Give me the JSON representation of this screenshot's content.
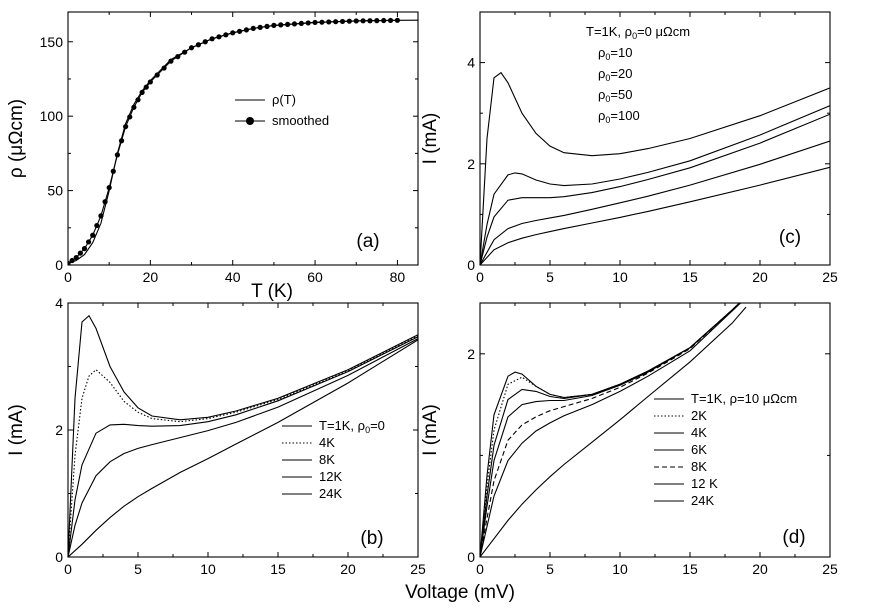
{
  "chart_data": [
    {
      "panel": "a",
      "type": "line",
      "panel_label": "(a)",
      "xlabel": "T (K)",
      "ylabel": "ρ (μΩcm)",
      "xlim": [
        0,
        85
      ],
      "ylim": [
        0,
        170
      ],
      "xticks": [
        0,
        20,
        40,
        60,
        80
      ],
      "yticks": [
        0,
        50,
        100,
        150
      ],
      "legend_position": "center-right",
      "series": [
        {
          "name": "ρ(T)",
          "style": "solid",
          "x": [
            0,
            2,
            4,
            6,
            8,
            10,
            12,
            14,
            16,
            18,
            20,
            25,
            30,
            35,
            40,
            45,
            50,
            55,
            60,
            65,
            70,
            75,
            80,
            85
          ],
          "y": [
            1,
            3,
            7,
            15,
            28,
            50,
            75,
            95,
            108,
            117,
            124,
            138,
            146,
            152,
            156,
            159,
            161,
            162,
            163,
            163.5,
            164,
            164.2,
            164.4,
            164.5
          ]
        },
        {
          "name": "smoothed",
          "style": "line-with-dots",
          "x": [
            0,
            2,
            4,
            6,
            8,
            10,
            12,
            14,
            16,
            18,
            20,
            25,
            30,
            35,
            40,
            45,
            50,
            55,
            60,
            65,
            70,
            75,
            80
          ],
          "y": [
            1,
            5,
            11,
            20,
            33,
            52,
            74,
            93,
            106,
            116,
            123,
            137,
            146,
            152,
            156,
            159,
            161,
            162,
            163,
            163.5,
            164,
            164.2,
            164.4
          ]
        }
      ]
    },
    {
      "panel": "b",
      "type": "line",
      "panel_label": "(b)",
      "xlabel": "Voltage (mV)",
      "ylabel": "I (mA)",
      "xlim": [
        0,
        25
      ],
      "ylim": [
        0,
        4
      ],
      "xticks": [
        0,
        5,
        10,
        15,
        20,
        25
      ],
      "yticks": [
        0,
        2,
        4
      ],
      "legend_position": "center-right",
      "series": [
        {
          "name": "T=1K, ρ0=0",
          "style": "solid",
          "x": [
            0,
            0.5,
            1,
            1.5,
            2,
            3,
            4,
            5,
            6,
            8,
            10,
            12,
            15,
            20,
            25
          ],
          "y": [
            0,
            2.5,
            3.7,
            3.8,
            3.6,
            3.0,
            2.6,
            2.35,
            2.22,
            2.16,
            2.2,
            2.3,
            2.5,
            2.95,
            3.5
          ]
        },
        {
          "name": "4K",
          "style": "dotted",
          "x": [
            0,
            0.5,
            1,
            1.5,
            2,
            3,
            4,
            5,
            6,
            8,
            10,
            12,
            15,
            20,
            25
          ],
          "y": [
            0,
            1.6,
            2.5,
            2.85,
            2.95,
            2.75,
            2.45,
            2.28,
            2.18,
            2.13,
            2.18,
            2.28,
            2.48,
            2.93,
            3.48
          ]
        },
        {
          "name": "8K",
          "style": "solid",
          "x": [
            0,
            0.5,
            1,
            2,
            3,
            4,
            5,
            6,
            8,
            10,
            12,
            15,
            20,
            25
          ],
          "y": [
            0,
            0.9,
            1.45,
            1.95,
            2.08,
            2.09,
            2.07,
            2.06,
            2.07,
            2.13,
            2.24,
            2.46,
            2.92,
            3.47
          ]
        },
        {
          "name": "12K",
          "style": "solid",
          "x": [
            0,
            0.5,
            1,
            2,
            3,
            4,
            5,
            6,
            8,
            10,
            12,
            15,
            20,
            25
          ],
          "y": [
            0,
            0.5,
            0.85,
            1.28,
            1.5,
            1.63,
            1.71,
            1.77,
            1.88,
            1.99,
            2.12,
            2.36,
            2.86,
            3.44
          ]
        },
        {
          "name": "24K",
          "style": "solid",
          "x": [
            0,
            1,
            2,
            3,
            4,
            5,
            6,
            8,
            10,
            12,
            15,
            20,
            25
          ],
          "y": [
            0,
            0.2,
            0.42,
            0.62,
            0.8,
            0.95,
            1.08,
            1.33,
            1.55,
            1.78,
            2.12,
            2.74,
            3.42
          ]
        }
      ]
    },
    {
      "panel": "c",
      "type": "line",
      "panel_label": "(c)",
      "xlabel": "",
      "ylabel": "I (mA)",
      "xlim": [
        0,
        25
      ],
      "ylim": [
        0,
        5
      ],
      "xticks": [
        0,
        5,
        10,
        15,
        20,
        25
      ],
      "yticks": [
        0,
        2,
        4
      ],
      "legend_position": "top-center",
      "series": [
        {
          "name": "T=1K, ρ0=0 μΩcm",
          "style": "solid",
          "x": [
            0,
            0.5,
            1,
            1.5,
            2,
            3,
            4,
            5,
            6,
            8,
            10,
            12,
            15,
            20,
            25
          ],
          "y": [
            0,
            2.5,
            3.7,
            3.8,
            3.6,
            3.0,
            2.6,
            2.35,
            2.22,
            2.16,
            2.2,
            2.3,
            2.5,
            2.95,
            3.5
          ]
        },
        {
          "name": "ρ0=10",
          "style": "solid",
          "x": [
            0,
            0.5,
            1,
            2,
            2.5,
            3,
            4,
            5,
            6,
            8,
            10,
            12,
            15,
            20,
            25
          ],
          "y": [
            0,
            0.8,
            1.4,
            1.78,
            1.82,
            1.8,
            1.68,
            1.6,
            1.57,
            1.6,
            1.7,
            1.83,
            2.06,
            2.57,
            3.15
          ]
        },
        {
          "name": "ρ0=20",
          "style": "solid",
          "x": [
            0,
            0.5,
            1,
            2,
            3,
            4,
            5,
            6,
            8,
            10,
            12,
            15,
            20,
            25
          ],
          "y": [
            0,
            0.55,
            0.95,
            1.28,
            1.33,
            1.33,
            1.33,
            1.35,
            1.43,
            1.55,
            1.69,
            1.92,
            2.41,
            2.98
          ]
        },
        {
          "name": "ρ0=50",
          "style": "solid",
          "x": [
            0,
            1,
            2,
            3,
            4,
            5,
            6,
            8,
            10,
            12,
            15,
            20,
            25
          ],
          "y": [
            0,
            0.5,
            0.72,
            0.82,
            0.88,
            0.93,
            0.98,
            1.1,
            1.23,
            1.36,
            1.58,
            1.99,
            2.45
          ]
        },
        {
          "name": "ρ0=100",
          "style": "solid",
          "x": [
            0,
            1,
            2,
            3,
            4,
            5,
            6,
            8,
            10,
            12,
            15,
            20,
            25
          ],
          "y": [
            0,
            0.3,
            0.44,
            0.53,
            0.6,
            0.66,
            0.72,
            0.83,
            0.94,
            1.06,
            1.25,
            1.58,
            1.93
          ]
        }
      ]
    },
    {
      "panel": "d",
      "type": "line",
      "panel_label": "(d)",
      "xlabel": "Voltage (mV)",
      "ylabel": "I (mA)",
      "xlim": [
        0,
        25
      ],
      "ylim": [
        0,
        2.5
      ],
      "xticks": [
        0,
        5,
        10,
        15,
        20,
        25
      ],
      "yticks": [
        0,
        2
      ],
      "legend_position": "center-right",
      "series": [
        {
          "name": "T=1K, ρ=10 μΩcm",
          "style": "solid",
          "x": [
            0,
            0.5,
            1,
            2,
            2.5,
            3,
            4,
            5,
            6,
            8,
            10,
            12,
            15,
            18,
            19
          ],
          "y": [
            0,
            0.8,
            1.4,
            1.78,
            1.82,
            1.8,
            1.68,
            1.6,
            1.57,
            1.6,
            1.7,
            1.83,
            2.06,
            2.43,
            2.56
          ]
        },
        {
          "name": "2K",
          "style": "dotted",
          "x": [
            0,
            0.5,
            1,
            2,
            3,
            4,
            5,
            6,
            8,
            10,
            12,
            15,
            18,
            19
          ],
          "y": [
            0,
            0.7,
            1.25,
            1.7,
            1.77,
            1.68,
            1.6,
            1.57,
            1.6,
            1.7,
            1.83,
            2.06,
            2.43,
            2.56
          ]
        },
        {
          "name": "4K",
          "style": "solid",
          "x": [
            0,
            0.5,
            1,
            2,
            3,
            4,
            5,
            6,
            8,
            10,
            12,
            15,
            18,
            19
          ],
          "y": [
            0,
            0.6,
            1.1,
            1.55,
            1.65,
            1.63,
            1.58,
            1.56,
            1.6,
            1.7,
            1.83,
            2.06,
            2.43,
            2.56
          ]
        },
        {
          "name": "6K",
          "style": "solid",
          "x": [
            0,
            0.5,
            1,
            2,
            3,
            4,
            5,
            6,
            8,
            10,
            12,
            15,
            18,
            19
          ],
          "y": [
            0,
            0.5,
            0.95,
            1.38,
            1.5,
            1.53,
            1.54,
            1.54,
            1.59,
            1.69,
            1.82,
            2.06,
            2.43,
            2.56
          ]
        },
        {
          "name": "8K",
          "style": "dashed",
          "x": [
            0,
            0.5,
            1,
            2,
            3,
            4,
            5,
            6,
            8,
            10,
            12,
            15,
            18,
            19
          ],
          "y": [
            0,
            0.38,
            0.75,
            1.15,
            1.3,
            1.38,
            1.44,
            1.48,
            1.56,
            1.67,
            1.81,
            2.05,
            2.43,
            2.56
          ]
        },
        {
          "name": "12 K",
          "style": "solid",
          "x": [
            0,
            0.5,
            1,
            2,
            3,
            4,
            5,
            6,
            8,
            10,
            12,
            15,
            18,
            19
          ],
          "y": [
            0,
            0.3,
            0.6,
            0.95,
            1.12,
            1.24,
            1.32,
            1.39,
            1.5,
            1.63,
            1.78,
            2.03,
            2.42,
            2.55
          ]
        },
        {
          "name": "24K",
          "style": "solid",
          "x": [
            0,
            1,
            2,
            3,
            4,
            5,
            6,
            8,
            10,
            12,
            15,
            18,
            19
          ],
          "y": [
            0,
            0.18,
            0.36,
            0.52,
            0.66,
            0.79,
            0.91,
            1.13,
            1.35,
            1.58,
            1.92,
            2.3,
            2.46
          ]
        }
      ]
    }
  ]
}
